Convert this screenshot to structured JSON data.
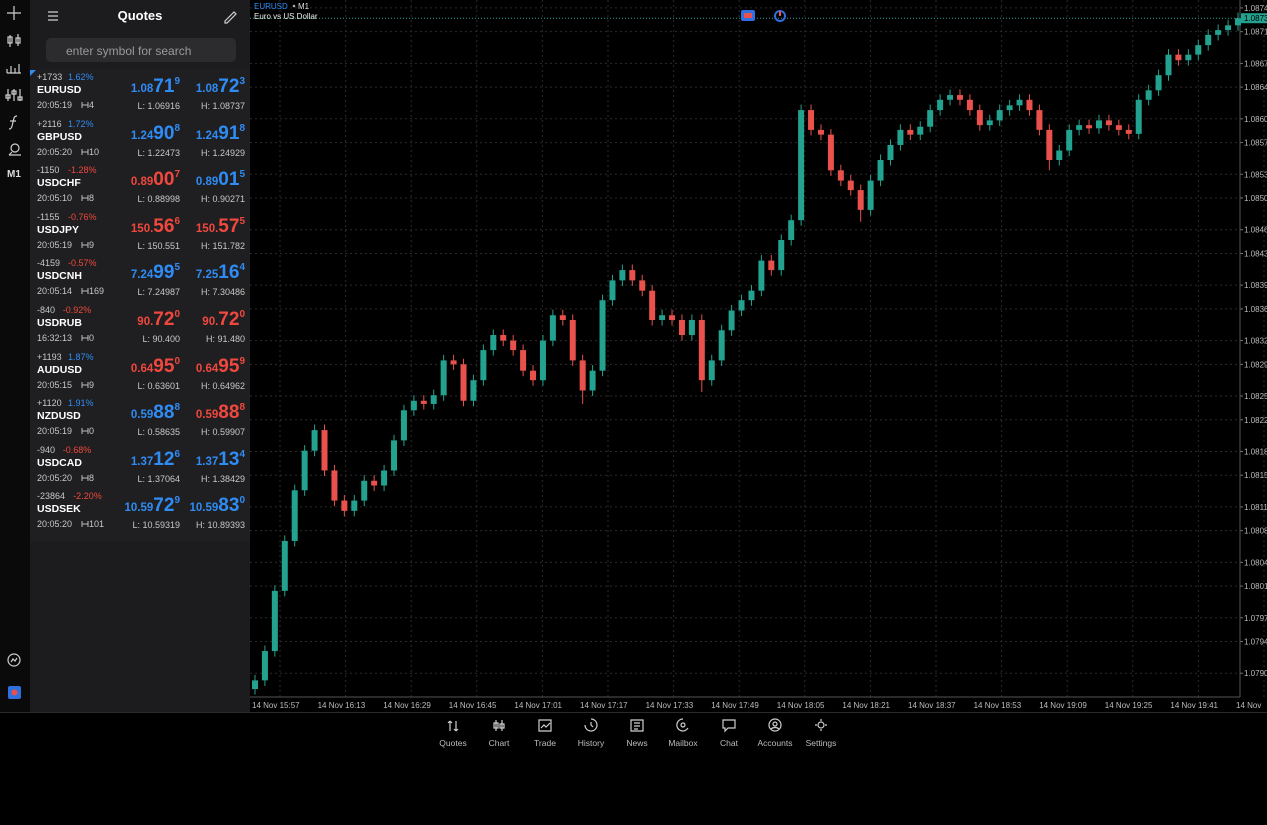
{
  "sidebar": {
    "timeframe": "M1"
  },
  "quotes": {
    "title": "Quotes",
    "search_placeholder": "enter symbol for search",
    "rows": [
      {
        "change": "+1733",
        "change_pct": "1.62%",
        "pct_color": "#2f8cf5",
        "symbol": "EURUSD",
        "time": "20:05:19",
        "spread": "4",
        "bid": {
          "prefix": "1.08",
          "big": "71",
          "sup": "9",
          "color": "#2f8cf5"
        },
        "ask": {
          "prefix": "1.08",
          "big": "72",
          "sup": "3",
          "color": "#2f8cf5"
        },
        "low": "L: 1.06916",
        "high": "H: 1.08737"
      },
      {
        "change": "+2116",
        "change_pct": "1.72%",
        "pct_color": "#2f8cf5",
        "symbol": "GBPUSD",
        "time": "20:05:20",
        "spread": "10",
        "bid": {
          "prefix": "1.24",
          "big": "90",
          "sup": "8",
          "color": "#2f8cf5"
        },
        "ask": {
          "prefix": "1.24",
          "big": "91",
          "sup": "8",
          "color": "#2f8cf5"
        },
        "low": "L: 1.22473",
        "high": "H: 1.24929"
      },
      {
        "change": "-1150",
        "change_pct": "-1.28%",
        "pct_color": "#f0483e",
        "symbol": "USDCHF",
        "time": "20:05:10",
        "spread": "8",
        "bid": {
          "prefix": "0.89",
          "big": "00",
          "sup": "7",
          "color": "#f0483e"
        },
        "ask": {
          "prefix": "0.89",
          "big": "01",
          "sup": "5",
          "color": "#2f8cf5"
        },
        "low": "L: 0.88998",
        "high": "H: 0.90271"
      },
      {
        "change": "-1155",
        "change_pct": "-0.76%",
        "pct_color": "#f0483e",
        "symbol": "USDJPY",
        "time": "20:05:19",
        "spread": "9",
        "bid": {
          "prefix": "150.",
          "big": "56",
          "sup": "6",
          "color": "#f0483e"
        },
        "ask": {
          "prefix": "150.",
          "big": "57",
          "sup": "5",
          "color": "#f0483e"
        },
        "low": "L: 150.551",
        "high": "H: 151.782"
      },
      {
        "change": "-4159",
        "change_pct": "-0.57%",
        "pct_color": "#f0483e",
        "symbol": "USDCNH",
        "time": "20:05:14",
        "spread": "169",
        "bid": {
          "prefix": "7.24",
          "big": "99",
          "sup": "5",
          "color": "#2f8cf5"
        },
        "ask": {
          "prefix": "7.25",
          "big": "16",
          "sup": "4",
          "color": "#2f8cf5"
        },
        "low": "L: 7.24987",
        "high": "H: 7.30486"
      },
      {
        "change": "-840",
        "change_pct": "-0.92%",
        "pct_color": "#f0483e",
        "symbol": "USDRUB",
        "time": "16:32:13",
        "spread": "0",
        "bid": {
          "prefix": "90.",
          "big": "72",
          "sup": "0",
          "color": "#f0483e"
        },
        "ask": {
          "prefix": "90.",
          "big": "72",
          "sup": "0",
          "color": "#f0483e"
        },
        "low": "L: 90.400",
        "high": "H: 91.480"
      },
      {
        "change": "+1193",
        "change_pct": "1.87%",
        "pct_color": "#2f8cf5",
        "symbol": "AUDUSD",
        "time": "20:05:15",
        "spread": "9",
        "bid": {
          "prefix": "0.64",
          "big": "95",
          "sup": "0",
          "color": "#f0483e"
        },
        "ask": {
          "prefix": "0.64",
          "big": "95",
          "sup": "9",
          "color": "#f0483e"
        },
        "low": "L: 0.63601",
        "high": "H: 0.64962"
      },
      {
        "change": "+1120",
        "change_pct": "1.91%",
        "pct_color": "#2f8cf5",
        "symbol": "NZDUSD",
        "time": "20:05:19",
        "spread": "0",
        "bid": {
          "prefix": "0.59",
          "big": "88",
          "sup": "8",
          "color": "#2f8cf5"
        },
        "ask": {
          "prefix": "0.59",
          "big": "88",
          "sup": "8",
          "color": "#f0483e"
        },
        "low": "L: 0.58635",
        "high": "H: 0.59907"
      },
      {
        "change": "-940",
        "change_pct": "-0.68%",
        "pct_color": "#f0483e",
        "symbol": "USDCAD",
        "time": "20:05:20",
        "spread": "8",
        "bid": {
          "prefix": "1.37",
          "big": "12",
          "sup": "6",
          "color": "#2f8cf5"
        },
        "ask": {
          "prefix": "1.37",
          "big": "13",
          "sup": "4",
          "color": "#2f8cf5"
        },
        "low": "L: 1.37064",
        "high": "H: 1.38429"
      },
      {
        "change": "-23864",
        "change_pct": "-2.20%",
        "pct_color": "#f0483e",
        "symbol": "USDSEK",
        "time": "20:05:20",
        "spread": "101",
        "bid": {
          "prefix": "10.59",
          "big": "72",
          "sup": "9",
          "color": "#2f8cf5"
        },
        "ask": {
          "prefix": "10.59",
          "big": "83",
          "sup": "0",
          "color": "#2f8cf5"
        },
        "low": "L: 10.59319",
        "high": "H: 10.89393"
      }
    ]
  },
  "chart_header": {
    "symbol": "EURUSD",
    "period": "M1",
    "description": "Euro vs US Dollar"
  },
  "chart_data": {
    "type": "candlestick",
    "grid": true,
    "up_color": "#22a28f",
    "down_color": "#e8514c",
    "ylim": [
      1.0787,
      1.0875
    ],
    "yticks": [
      {
        "value": 1.079,
        "label": "1.0790"
      },
      1.0794,
      1.0797,
      1.0801,
      1.0804,
      1.0808,
      1.0811,
      1.0815,
      1.0818,
      1.0822,
      1.0825,
      1.0829,
      1.0832,
      1.0836,
      1.0839,
      1.0843,
      1.0846,
      {
        "value": 1.085,
        "label": "1.0850"
      },
      1.0853,
      1.0857,
      {
        "value": 1.086,
        "label": "1.0860"
      },
      1.0864,
      1.0867,
      1.0871,
      1.0874
    ],
    "x_labels": [
      "14 Nov 15:57",
      "14 Nov 16:13",
      "14 Nov 16:29",
      "14 Nov 16:45",
      "14 Nov 17:01",
      "14 Nov 17:17",
      "14 Nov 17:33",
      "14 Nov 17:49",
      "14 Nov 18:05",
      "14 Nov 18:21",
      "14 Nov 18:37",
      "14 Nov 18:53",
      "14 Nov 19:09",
      "14 Nov 19:25",
      "14 Nov 19:41",
      "14 Nov"
    ],
    "last_price": {
      "value": 1.08727,
      "label": "1.0873"
    },
    "candles": [
      [
        1.0788,
        1.07898,
        1.07873,
        1.07891
      ],
      [
        1.07891,
        1.07935,
        1.07884,
        1.07928
      ],
      [
        1.07928,
        1.08011,
        1.07921,
        1.08004
      ],
      [
        1.08004,
        1.08074,
        1.07997,
        1.08067
      ],
      [
        1.08067,
        1.08138,
        1.0806,
        1.08131
      ],
      [
        1.08131,
        1.08188,
        1.08124,
        1.08181
      ],
      [
        1.08181,
        1.08214,
        1.08174,
        1.08207
      ],
      [
        1.08207,
        1.08214,
        1.08149,
        1.08156
      ],
      [
        1.08156,
        1.08163,
        1.08111,
        1.08118
      ],
      [
        1.08118,
        1.08125,
        1.08098,
        1.08105
      ],
      [
        1.08105,
        1.08125,
        1.08098,
        1.08118
      ],
      [
        1.08118,
        1.0815,
        1.08111,
        1.08143
      ],
      [
        1.08143,
        1.0815,
        1.0813,
        1.08137
      ],
      [
        1.08137,
        1.08163,
        1.0813,
        1.08156
      ],
      [
        1.08156,
        1.08201,
        1.08149,
        1.08194
      ],
      [
        1.08194,
        1.08239,
        1.08187,
        1.08232
      ],
      [
        1.08232,
        1.08251,
        1.08225,
        1.08244
      ],
      [
        1.08244,
        1.08251,
        1.08233,
        1.0824
      ],
      [
        1.0824,
        1.08258,
        1.08233,
        1.08251
      ],
      [
        1.08251,
        1.08302,
        1.08244,
        1.08295
      ],
      [
        1.08295,
        1.08302,
        1.08283,
        1.0829
      ],
      [
        1.0829,
        1.08297,
        1.08237,
        1.08244
      ],
      [
        1.08244,
        1.08277,
        1.08237,
        1.0827
      ],
      [
        1.0827,
        1.08315,
        1.08263,
        1.08308
      ],
      [
        1.08308,
        1.08334,
        1.08301,
        1.08327
      ],
      [
        1.08327,
        1.08334,
        1.08313,
        1.0832
      ],
      [
        1.0832,
        1.08327,
        1.08301,
        1.08308
      ],
      [
        1.08308,
        1.08315,
        1.08275,
        1.08282
      ],
      [
        1.08282,
        1.08289,
        1.08263,
        1.0827
      ],
      [
        1.0827,
        1.08327,
        1.08263,
        1.0832
      ],
      [
        1.0832,
        1.08359,
        1.08313,
        1.08352
      ],
      [
        1.08352,
        1.08359,
        1.08339,
        1.08346
      ],
      [
        1.08346,
        1.08353,
        1.08288,
        1.08295
      ],
      [
        1.08295,
        1.08302,
        1.0824,
        1.08257
      ],
      [
        1.08257,
        1.08289,
        1.0825,
        1.08282
      ],
      [
        1.08282,
        1.08378,
        1.08275,
        1.08371
      ],
      [
        1.08371,
        1.08403,
        1.08364,
        1.08396
      ],
      [
        1.08396,
        1.08416,
        1.08389,
        1.08409
      ],
      [
        1.08409,
        1.08416,
        1.08389,
        1.08396
      ],
      [
        1.08396,
        1.08403,
        1.08376,
        1.08383
      ],
      [
        1.08383,
        1.0839,
        1.08339,
        1.08346
      ],
      [
        1.08346,
        1.08359,
        1.08339,
        1.08352
      ],
      [
        1.08352,
        1.08359,
        1.08339,
        1.08346
      ],
      [
        1.08346,
        1.08353,
        1.0832,
        1.08327
      ],
      [
        1.08327,
        1.08353,
        1.0832,
        1.08346
      ],
      [
        1.08346,
        1.08353,
        1.08255,
        1.0827
      ],
      [
        1.0827,
        1.08302,
        1.08263,
        1.08295
      ],
      [
        1.08295,
        1.0834,
        1.08288,
        1.08333
      ],
      [
        1.08333,
        1.08365,
        1.08326,
        1.08358
      ],
      [
        1.08358,
        1.08378,
        1.08351,
        1.08371
      ],
      [
        1.08371,
        1.0839,
        1.08364,
        1.08383
      ],
      [
        1.08383,
        1.08428,
        1.08376,
        1.08421
      ],
      [
        1.08421,
        1.08428,
        1.08402,
        1.08409
      ],
      [
        1.08409,
        1.08454,
        1.08402,
        1.08447
      ],
      [
        1.08447,
        1.08479,
        1.0844,
        1.08472
      ],
      [
        1.08472,
        1.08618,
        1.08465,
        1.08611
      ],
      [
        1.08611,
        1.08618,
        1.08579,
        1.08586
      ],
      [
        1.08586,
        1.08593,
        1.08573,
        1.0858
      ],
      [
        1.0858,
        1.08587,
        1.08528,
        1.08535
      ],
      [
        1.08535,
        1.08542,
        1.08515,
        1.08522
      ],
      [
        1.08522,
        1.08529,
        1.08503,
        1.0851
      ],
      [
        1.0851,
        1.08517,
        1.0847,
        1.08485
      ],
      [
        1.08485,
        1.08529,
        1.08478,
        1.08522
      ],
      [
        1.08522,
        1.08555,
        1.08515,
        1.08548
      ],
      [
        1.08548,
        1.08574,
        1.08541,
        1.08567
      ],
      [
        1.08567,
        1.08593,
        1.0856,
        1.08586
      ],
      [
        1.08586,
        1.08593,
        1.08573,
        1.0858
      ],
      [
        1.0858,
        1.08597,
        1.08573,
        1.0859
      ],
      [
        1.0859,
        1.08618,
        1.08583,
        1.08611
      ],
      [
        1.08611,
        1.08631,
        1.08604,
        1.08624
      ],
      [
        1.08624,
        1.08637,
        1.08617,
        1.0863
      ],
      [
        1.0863,
        1.08637,
        1.08617,
        1.08624
      ],
      [
        1.08624,
        1.08631,
        1.08604,
        1.08611
      ],
      [
        1.08611,
        1.08618,
        1.08585,
        1.08592
      ],
      [
        1.08592,
        1.08605,
        1.08585,
        1.08598
      ],
      [
        1.08598,
        1.08618,
        1.08591,
        1.08611
      ],
      [
        1.08611,
        1.08624,
        1.08604,
        1.08617
      ],
      [
        1.08617,
        1.08631,
        1.0861,
        1.08624
      ],
      [
        1.08624,
        1.08631,
        1.08604,
        1.08611
      ],
      [
        1.08611,
        1.08618,
        1.08579,
        1.08586
      ],
      [
        1.08586,
        1.08593,
        1.08535,
        1.08548
      ],
      [
        1.08548,
        1.08567,
        1.08541,
        1.0856
      ],
      [
        1.0856,
        1.08593,
        1.08553,
        1.08586
      ],
      [
        1.08586,
        1.08599,
        1.08579,
        1.08592
      ],
      [
        1.08592,
        1.08599,
        1.08581,
        1.08588
      ],
      [
        1.08588,
        1.08605,
        1.08581,
        1.08598
      ],
      [
        1.08598,
        1.08605,
        1.08585,
        1.08592
      ],
      [
        1.08592,
        1.08599,
        1.08579,
        1.08586
      ],
      [
        1.08586,
        1.08593,
        1.08574,
        1.08581
      ],
      [
        1.08581,
        1.08631,
        1.08574,
        1.08624
      ],
      [
        1.08624,
        1.08643,
        1.08617,
        1.08636
      ],
      [
        1.08636,
        1.08662,
        1.08629,
        1.08655
      ],
      [
        1.08655,
        1.08688,
        1.08648,
        1.08681
      ],
      [
        1.08681,
        1.08688,
        1.08667,
        1.08674
      ],
      [
        1.08674,
        1.08688,
        1.08667,
        1.08681
      ],
      [
        1.08681,
        1.087,
        1.08674,
        1.08693
      ],
      [
        1.08693,
        1.08713,
        1.08686,
        1.08706
      ],
      [
        1.08706,
        1.08719,
        1.08699,
        1.08712
      ],
      [
        1.08712,
        1.08725,
        1.08705,
        1.08718
      ],
      [
        1.08718,
        1.08734,
        1.08711,
        1.08727
      ]
    ]
  },
  "nav": {
    "items": [
      "Quotes",
      "Chart",
      "Trade",
      "History",
      "News",
      "Mailbox",
      "Chat",
      "Accounts",
      "Settings"
    ]
  }
}
